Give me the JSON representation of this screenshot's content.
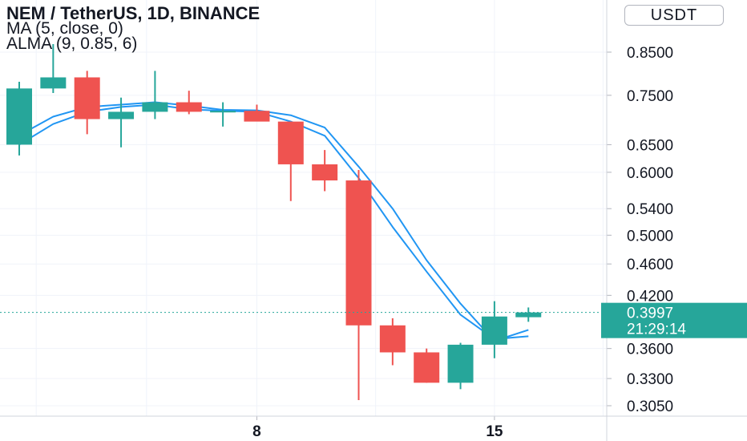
{
  "header": {
    "title": "NEM / TetherUS, 1D, BINANCE",
    "ma": "MA (5, close, 0)",
    "alma": "ALMA (9, 0.85, 6)"
  },
  "currency_button": "USDT",
  "colors": {
    "up": "#26a69a",
    "down": "#ef5350",
    "ma_line": "#2196f3",
    "alma_line": "#2196f3",
    "grid": "#f0f3fa"
  },
  "chart_data": {
    "type": "candlestick",
    "symbol": "NEM / TetherUS",
    "interval": "1D",
    "exchange": "BINANCE",
    "y_scale": "log",
    "ylim": [
      0.295,
      0.98
    ],
    "y_ticks": [
      "0.8500",
      "0.7500",
      "0.6500",
      "0.6000",
      "0.5400",
      "0.5000",
      "0.4600",
      "0.4200",
      "0.3600",
      "0.3300",
      "0.3050"
    ],
    "x_ticks": [
      {
        "label": "8",
        "day": 8
      },
      {
        "label": "15",
        "day": 15
      }
    ],
    "candles": [
      {
        "day": 1,
        "open": 0.65,
        "high": 0.78,
        "low": 0.63,
        "close": 0.765
      },
      {
        "day": 2,
        "open": 0.765,
        "high": 0.87,
        "low": 0.755,
        "close": 0.79
      },
      {
        "day": 3,
        "open": 0.79,
        "high": 0.805,
        "low": 0.67,
        "close": 0.7
      },
      {
        "day": 4,
        "open": 0.7,
        "high": 0.745,
        "low": 0.645,
        "close": 0.715
      },
      {
        "day": 5,
        "open": 0.715,
        "high": 0.805,
        "low": 0.7,
        "close": 0.735
      },
      {
        "day": 6,
        "open": 0.735,
        "high": 0.76,
        "low": 0.71,
        "close": 0.715
      },
      {
        "day": 7,
        "open": 0.715,
        "high": 0.735,
        "low": 0.685,
        "close": 0.717
      },
      {
        "day": 8,
        "open": 0.717,
        "high": 0.73,
        "low": 0.7,
        "close": 0.695
      },
      {
        "day": 9,
        "open": 0.695,
        "high": 0.695,
        "low": 0.552,
        "close": 0.614
      },
      {
        "day": 10,
        "open": 0.614,
        "high": 0.64,
        "low": 0.568,
        "close": 0.586
      },
      {
        "day": 11,
        "open": 0.586,
        "high": 0.604,
        "low": 0.31,
        "close": 0.385
      },
      {
        "day": 12,
        "open": 0.385,
        "high": 0.393,
        "low": 0.343,
        "close": 0.356
      },
      {
        "day": 13,
        "open": 0.356,
        "high": 0.36,
        "low": 0.326,
        "close": 0.326
      },
      {
        "day": 14,
        "open": 0.326,
        "high": 0.366,
        "low": 0.32,
        "close": 0.364
      },
      {
        "day": 15,
        "open": 0.364,
        "high": 0.413,
        "low": 0.35,
        "close": 0.395
      },
      {
        "day": 16,
        "open": 0.3942,
        "high": 0.4055,
        "low": 0.389,
        "close": 0.3997
      }
    ],
    "series": [
      {
        "name": "MA (5, close, 0)",
        "values": [
          {
            "day": 1,
            "value": 0.65
          },
          {
            "day": 2,
            "value": 0.69
          },
          {
            "day": 3,
            "value": 0.715
          },
          {
            "day": 4,
            "value": 0.725
          },
          {
            "day": 5,
            "value": 0.73
          },
          {
            "day": 6,
            "value": 0.72
          },
          {
            "day": 7,
            "value": 0.717
          },
          {
            "day": 8,
            "value": 0.715
          },
          {
            "day": 9,
            "value": 0.695
          },
          {
            "day": 10,
            "value": 0.667
          },
          {
            "day": 11,
            "value": 0.59
          },
          {
            "day": 12,
            "value": 0.512
          },
          {
            "day": 13,
            "value": 0.45
          },
          {
            "day": 14,
            "value": 0.397
          },
          {
            "day": 15,
            "value": 0.37
          },
          {
            "day": 16,
            "value": 0.373
          }
        ]
      },
      {
        "name": "ALMA (9, 0.85, 6)",
        "values": [
          {
            "day": 1,
            "value": 0.668
          },
          {
            "day": 2,
            "value": 0.705
          },
          {
            "day": 3,
            "value": 0.725
          },
          {
            "day": 4,
            "value": 0.73
          },
          {
            "day": 5,
            "value": 0.735
          },
          {
            "day": 6,
            "value": 0.728
          },
          {
            "day": 7,
            "value": 0.719
          },
          {
            "day": 8,
            "value": 0.718
          },
          {
            "day": 9,
            "value": 0.708
          },
          {
            "day": 10,
            "value": 0.683
          },
          {
            "day": 11,
            "value": 0.61
          },
          {
            "day": 12,
            "value": 0.54
          },
          {
            "day": 13,
            "value": 0.465
          },
          {
            "day": 14,
            "value": 0.41
          },
          {
            "day": 15,
            "value": 0.368
          },
          {
            "day": 16,
            "value": 0.38
          }
        ]
      }
    ],
    "last_price": {
      "value": "0.3997",
      "countdown": "21:29:14"
    }
  }
}
